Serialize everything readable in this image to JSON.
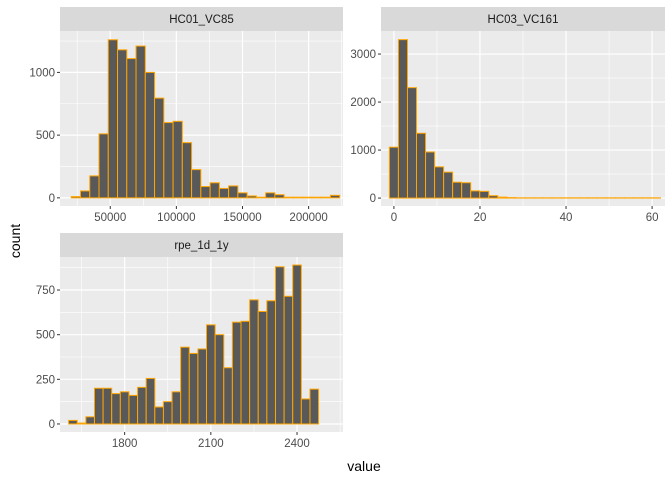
{
  "chart_data": {
    "type": "bar",
    "xlabel": "value",
    "ylabel": "count",
    "bar_fill": "#595959",
    "bar_outline": "#ffa500",
    "panel_bg": "#ebebeb",
    "strip_bg": "#d9d9d9",
    "grid_color": "#ffffff",
    "grid": true,
    "panels": [
      {
        "title": "HC01_VC85",
        "xlim": [
          12000,
          226000
        ],
        "ylim": [
          -65,
          1330
        ],
        "xticks": [
          50000,
          100000,
          150000,
          200000
        ],
        "xtick_labels": [
          "50000",
          "100000",
          "150000",
          "200000"
        ],
        "yticks": [
          0,
          500,
          1000
        ],
        "ytick_labels": [
          "0",
          "500",
          "1000"
        ],
        "bin_width": 7000,
        "bin_centers": [
          24000,
          31000,
          38000,
          45000,
          52000,
          59000,
          66000,
          73000,
          80000,
          87000,
          94000,
          101000,
          108000,
          115000,
          122000,
          129000,
          136000,
          143000,
          150000,
          157000,
          164000,
          171000,
          178000,
          185000,
          192000,
          199000,
          206000,
          213000,
          220000
        ],
        "values": [
          10,
          55,
          175,
          510,
          1260,
          1180,
          1110,
          1210,
          1000,
          795,
          600,
          610,
          440,
          225,
          90,
          120,
          75,
          95,
          40,
          15,
          5,
          40,
          25,
          5,
          5,
          5,
          5,
          5,
          20
        ]
      },
      {
        "title": "HC03_VC161",
        "xlim": [
          -3,
          63
        ],
        "ylim": [
          -165,
          3480
        ],
        "xticks": [
          0,
          20,
          40,
          60
        ],
        "xtick_labels": [
          "0",
          "20",
          "40",
          "60"
        ],
        "yticks": [
          0,
          1000,
          2000,
          3000
        ],
        "ytick_labels": [
          "0",
          "1000",
          "2000",
          "3000"
        ],
        "bin_width": 2.1,
        "bin_centers": [
          0,
          2.1,
          4.2,
          6.3,
          8.4,
          10.5,
          12.6,
          14.7,
          16.8,
          18.9,
          21.0,
          23.1,
          25.2,
          27.3,
          29.4,
          31.5,
          33.6,
          35.7,
          37.8,
          39.9,
          42.0,
          44.1,
          46.2,
          48.3,
          50.4,
          52.5,
          54.6,
          56.7,
          58.8,
          60.9
        ],
        "values": [
          1060,
          3300,
          2300,
          1350,
          960,
          650,
          540,
          330,
          320,
          150,
          140,
          50,
          20,
          10,
          5,
          5,
          5,
          5,
          5,
          5,
          5,
          5,
          5,
          5,
          5,
          5,
          5,
          5,
          5,
          5
        ]
      },
      {
        "title": "rpe_1d_1y",
        "xlim": [
          1575,
          2560
        ],
        "ylim": [
          -45,
          935
        ],
        "xticks": [
          1800,
          2100,
          2400
        ],
        "xtick_labels": [
          "1800",
          "2100",
          "2400"
        ],
        "yticks": [
          0,
          250,
          500,
          750
        ],
        "ytick_labels": [
          "0",
          "250",
          "500",
          "750"
        ],
        "bin_width": 30,
        "bin_centers": [
          1620,
          1650,
          1680,
          1710,
          1740,
          1770,
          1800,
          1830,
          1860,
          1890,
          1920,
          1950,
          1980,
          2010,
          2040,
          2070,
          2100,
          2130,
          2160,
          2190,
          2220,
          2250,
          2280,
          2310,
          2340,
          2370,
          2400,
          2430,
          2460,
          2490,
          2520
        ],
        "values": [
          20,
          5,
          40,
          200,
          200,
          170,
          180,
          160,
          205,
          255,
          95,
          125,
          180,
          430,
          395,
          420,
          555,
          500,
          315,
          570,
          575,
          695,
          630,
          690,
          880,
          715,
          890,
          140,
          195,
          0,
          0
        ]
      }
    ]
  }
}
